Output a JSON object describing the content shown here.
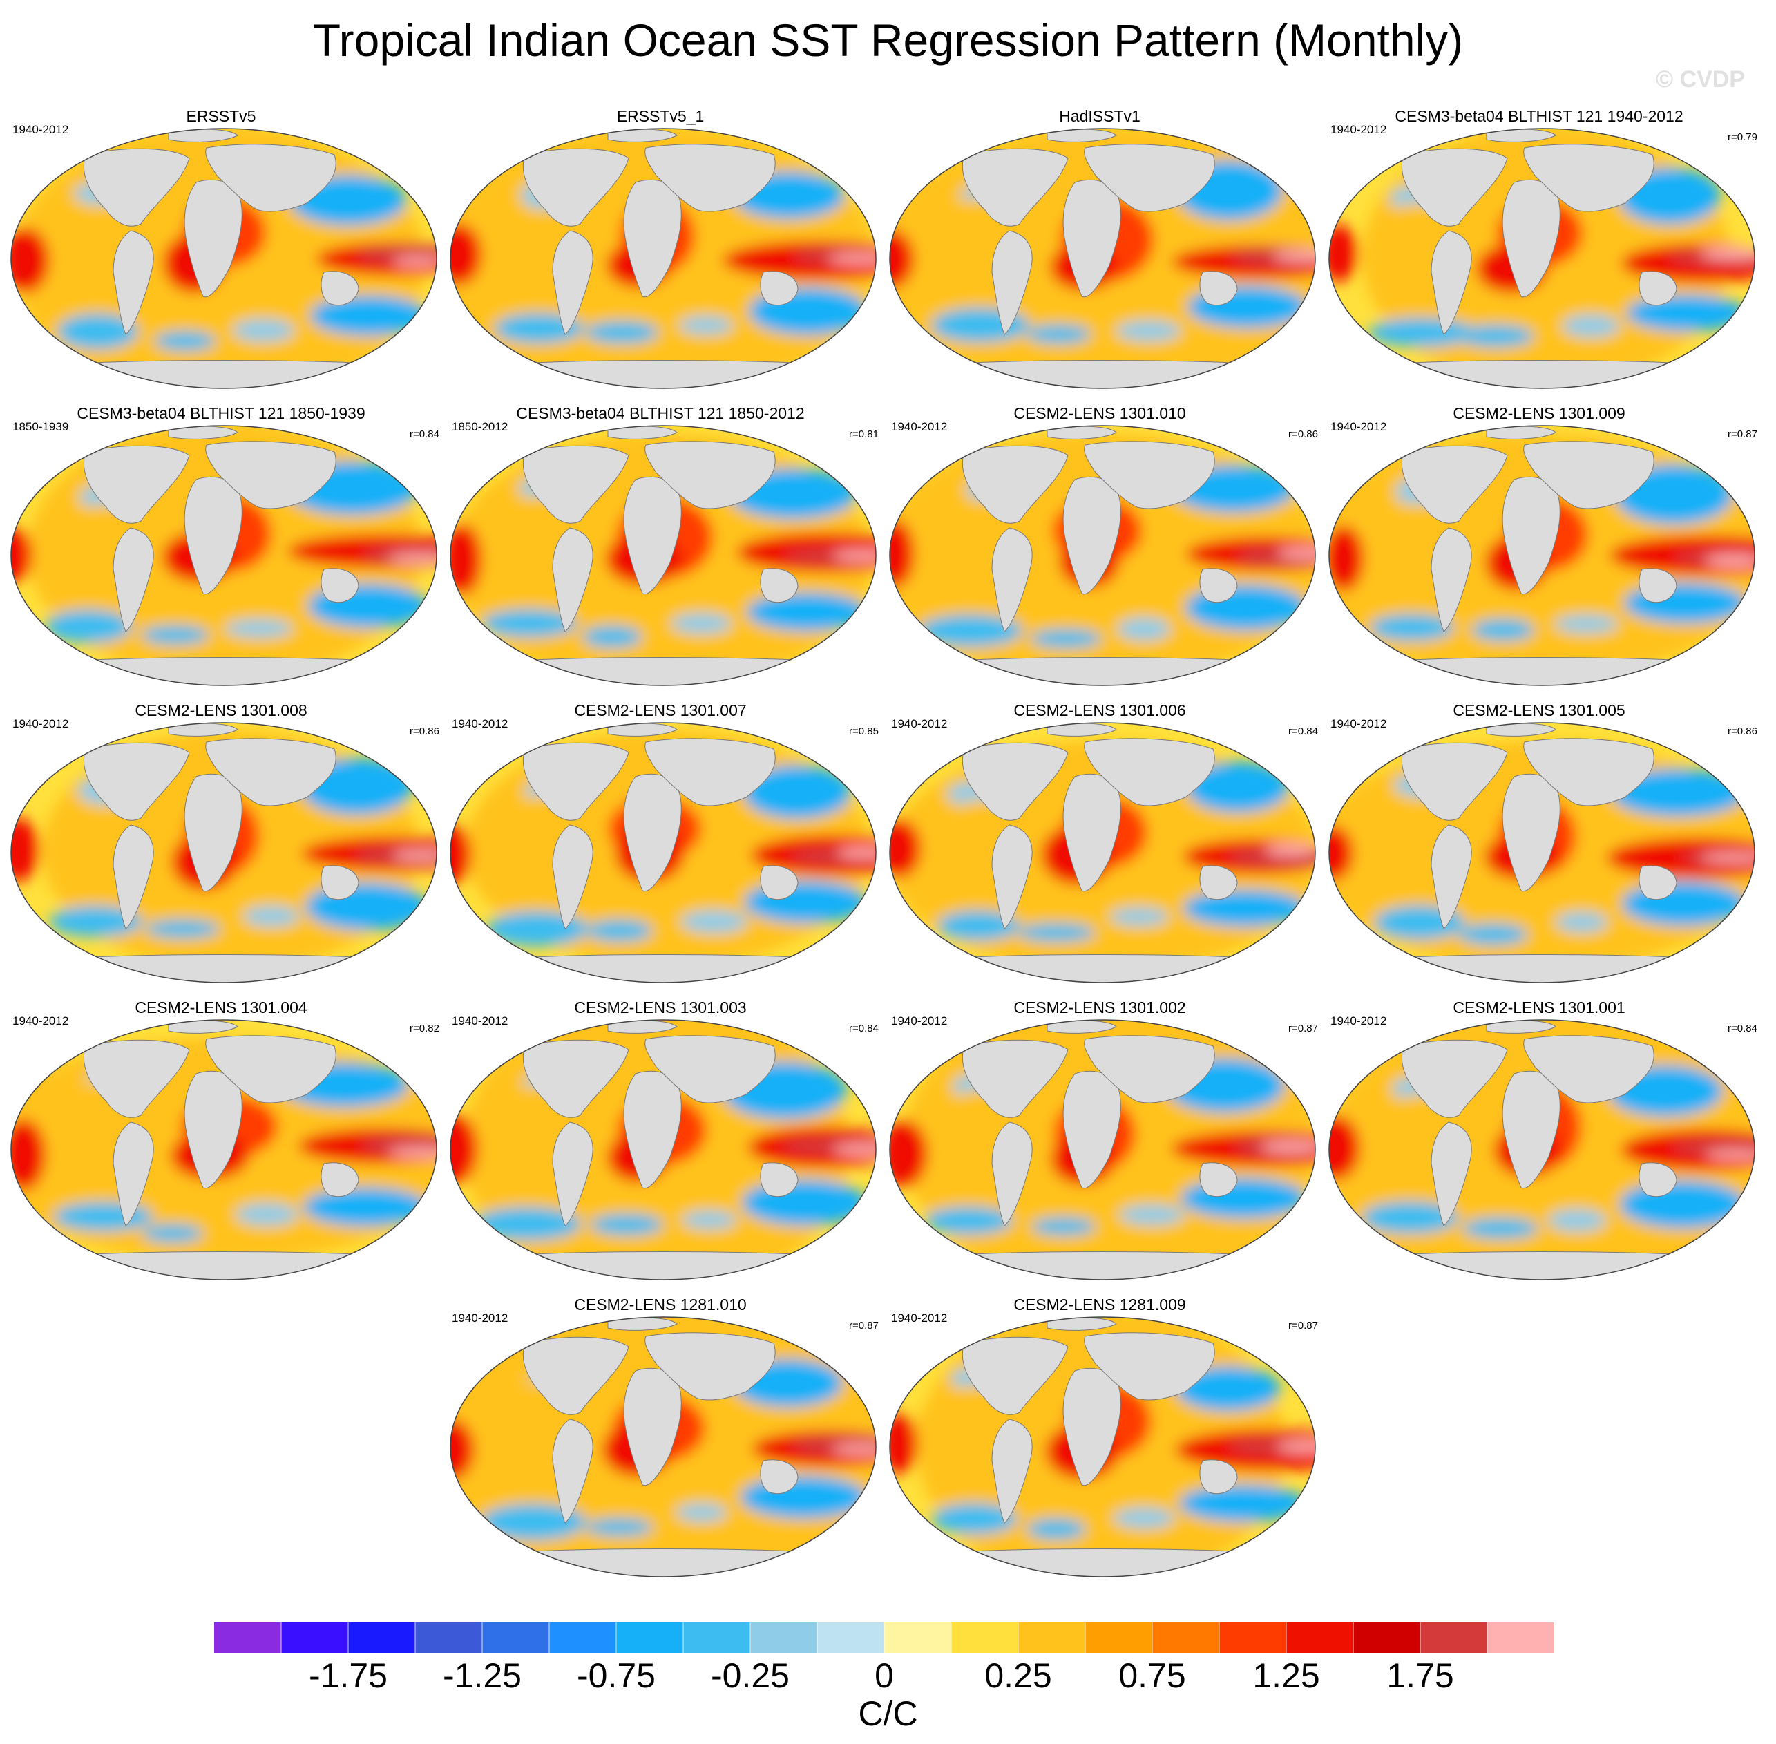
{
  "title": "Tropical Indian Ocean SST Regression Pattern (Monthly)",
  "credit": "© CVDP",
  "units": "C/C",
  "colorbar": {
    "colors": [
      "#8a2be2",
      "#3a0fff",
      "#1a1aff",
      "#3c5ad8",
      "#2f70e8",
      "#1e90ff",
      "#15b0f8",
      "#3cbcf0",
      "#8fcce8",
      "#bfe2f2",
      "#fff5a0",
      "#ffe03c",
      "#ffc21c",
      "#ff9e00",
      "#ff7800",
      "#ff3c00",
      "#f01000",
      "#d10000",
      "#d43a3a",
      "#ffb0b0"
    ],
    "tick_labels": [
      "-1.75",
      "-1.25",
      "-0.75",
      "-0.25",
      "0",
      "0.25",
      "0.75",
      "1.25",
      "1.75"
    ]
  },
  "chart_data": {
    "type": "heatmap",
    "description_variable": "SST regression onto Tropical Indian Ocean index",
    "projection": "Robinson (global)",
    "levels": [
      -2.0,
      -1.75,
      -1.5,
      -1.25,
      -1.0,
      -0.75,
      -0.5,
      -0.25,
      -0.1,
      0,
      0.1,
      0.25,
      0.5,
      0.75,
      1.0,
      1.25,
      1.5,
      1.75,
      2.0
    ],
    "panels": [
      {
        "title": "ERSSTv5",
        "years": "1940-2012",
        "r": ""
      },
      {
        "title": "ERSSTv5_1",
        "years": "",
        "r": ""
      },
      {
        "title": "HadISSTv1",
        "years": "",
        "r": ""
      },
      {
        "title": "CESM3-beta04 BLTHIST 121 1940-2012",
        "years": "1940-2012",
        "r": "r=0.79"
      },
      {
        "title": "CESM3-beta04 BLTHIST 121 1850-1939",
        "years": "1850-1939",
        "r": "r=0.84"
      },
      {
        "title": "CESM3-beta04 BLTHIST 121 1850-2012",
        "years": "1850-2012",
        "r": "r=0.81"
      },
      {
        "title": "CESM2-LENS 1301.010",
        "years": "1940-2012",
        "r": "r=0.86"
      },
      {
        "title": "CESM2-LENS 1301.009",
        "years": "1940-2012",
        "r": "r=0.87"
      },
      {
        "title": "CESM2-LENS 1301.008",
        "years": "1940-2012",
        "r": "r=0.86"
      },
      {
        "title": "CESM2-LENS 1301.007",
        "years": "1940-2012",
        "r": "r=0.85"
      },
      {
        "title": "CESM2-LENS 1301.006",
        "years": "1940-2012",
        "r": "r=0.84"
      },
      {
        "title": "CESM2-LENS 1301.005",
        "years": "1940-2012",
        "r": "r=0.86"
      },
      {
        "title": "CESM2-LENS 1301.004",
        "years": "1940-2012",
        "r": "r=0.82"
      },
      {
        "title": "CESM2-LENS 1301.003",
        "years": "1940-2012",
        "r": "r=0.84"
      },
      {
        "title": "CESM2-LENS 1301.002",
        "years": "1940-2012",
        "r": "r=0.87"
      },
      {
        "title": "CESM2-LENS 1301.001",
        "years": "1940-2012",
        "r": "r=0.84"
      },
      {
        "title": "CESM2-LENS 1281.010",
        "years": "1940-2012",
        "r": "r=0.87"
      },
      {
        "title": "CESM2-LENS 1281.009",
        "years": "1940-2012",
        "r": "r=0.87"
      }
    ]
  }
}
